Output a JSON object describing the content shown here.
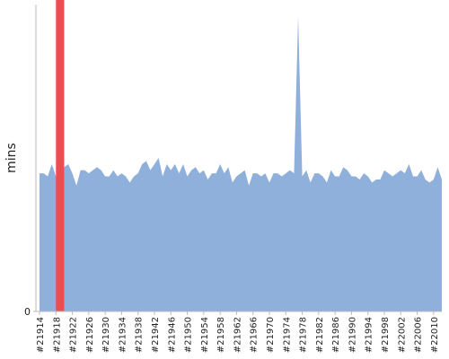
{
  "chart_data": {
    "type": "area",
    "y_label": "mins",
    "categories": [
      "#21914",
      null,
      null,
      null,
      "#21918",
      null,
      null,
      null,
      "#21922",
      null,
      null,
      null,
      "#21926",
      null,
      null,
      null,
      "#21930",
      null,
      null,
      null,
      "#21934",
      null,
      null,
      null,
      "#21938",
      null,
      null,
      null,
      "#21942",
      null,
      null,
      null,
      "#21946",
      null,
      null,
      null,
      "#21950",
      null,
      null,
      null,
      "#21954",
      null,
      null,
      null,
      "#21958",
      null,
      null,
      null,
      "#21962",
      null,
      null,
      null,
      "#21966",
      null,
      null,
      null,
      "#21970",
      null,
      null,
      null,
      "#21974",
      null,
      null,
      null,
      "#21978",
      null,
      null,
      null,
      "#21982",
      null,
      null,
      null,
      "#21986",
      null,
      null,
      null,
      "#21990",
      null,
      null,
      null,
      "#21994",
      null,
      null,
      null,
      "#21998",
      null,
      null,
      null,
      "#22002",
      null,
      null,
      null,
      "#22006",
      null,
      null,
      null,
      "#22010",
      null,
      null
    ],
    "values": [
      45,
      45,
      44,
      48,
      44,
      45,
      47,
      48,
      45,
      41,
      46,
      46,
      45,
      46,
      47,
      46,
      44,
      44,
      46,
      44,
      45,
      44,
      42,
      44,
      45,
      48,
      49,
      46,
      48,
      50,
      44,
      48,
      46,
      48,
      45,
      48,
      44,
      46,
      47,
      45,
      46,
      43,
      45,
      45,
      48,
      45,
      47,
      42,
      44,
      45,
      46,
      41,
      45,
      45,
      44,
      45,
      42,
      45,
      45,
      44,
      45,
      46,
      45,
      96,
      44,
      46,
      42,
      45,
      45,
      44,
      42,
      46,
      44,
      44,
      47,
      46,
      44,
      44,
      43,
      45,
      44,
      42,
      43,
      43,
      46,
      45,
      44,
      45,
      46,
      45,
      48,
      44,
      44,
      46,
      43,
      42,
      43,
      47,
      43
    ],
    "color": "#8eb0db",
    "highlight": {
      "index": 5,
      "color": "#ee4c50"
    },
    "ylim": [
      0,
      100
    ],
    "yticks": [
      0
    ]
  }
}
